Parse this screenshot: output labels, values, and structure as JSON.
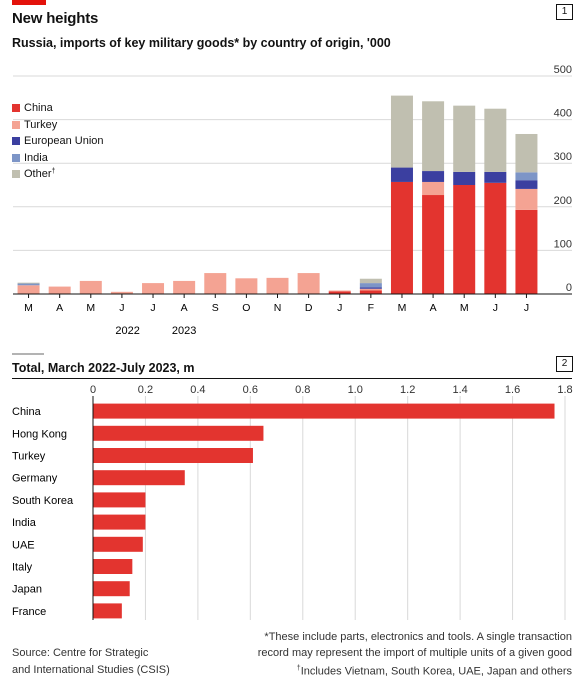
{
  "header": {
    "title": "New heights",
    "subtitle": "Russia, imports of key military goods* by country of origin, '000",
    "panel1_number": "1",
    "panel2_number": "2",
    "panel2_title": "Total, March 2022-July 2023, m"
  },
  "legend": [
    {
      "label": "China",
      "color": "#e3342f"
    },
    {
      "label": "Turkey",
      "color": "#f4a393"
    },
    {
      "label": "European Union",
      "color": "#3b3fa0"
    },
    {
      "label": "India",
      "color": "#7d95c7"
    },
    {
      "label": "Other",
      "sup": "†",
      "color": "#c0bfb0"
    }
  ],
  "footer": {
    "source_line1": "Source: Centre for Strategic",
    "source_line2": "and International Studies (CSIS)",
    "note_line1": "*These include parts, electronics and tools. A single transaction",
    "note_line2": "record may represent the import of multiple units of a given good",
    "note_line3_sup": "†",
    "note_line3": "Includes Vietnam, South Korea, UAE, Japan and others"
  },
  "chart_data": [
    {
      "type": "bar",
      "stacked": true,
      "title": "Russia, imports of key military goods* by country of origin, '000",
      "categories": [
        "M",
        "A",
        "M",
        "J",
        "J",
        "A",
        "S",
        "O",
        "N",
        "D",
        "J",
        "F",
        "M",
        "A",
        "M",
        "J",
        "J"
      ],
      "year_labels": [
        {
          "label": "2022",
          "under": "A"
        },
        {
          "label": "2023",
          "under": "A"
        }
      ],
      "y_ticks": [
        0,
        100,
        200,
        300,
        400,
        500
      ],
      "ylim": [
        0,
        500
      ],
      "series": [
        {
          "name": "China",
          "color": "#e3342f",
          "values": [
            0,
            0,
            0,
            0,
            0,
            0,
            0,
            0,
            0,
            0,
            6,
            8,
            257,
            227,
            250,
            255,
            193
          ]
        },
        {
          "name": "Turkey",
          "color": "#f4a393",
          "values": [
            20,
            17,
            30,
            5,
            25,
            30,
            48,
            36,
            37,
            48,
            2,
            4,
            0,
            30,
            0,
            0,
            48
          ]
        },
        {
          "name": "European Union",
          "color": "#3b3fa0",
          "values": [
            0,
            0,
            0,
            0,
            0,
            0,
            0,
            0,
            0,
            0,
            0,
            3,
            33,
            25,
            30,
            25,
            20
          ]
        },
        {
          "name": "India",
          "color": "#7d95c7",
          "values": [
            4,
            0,
            0,
            0,
            0,
            0,
            0,
            0,
            0,
            0,
            0,
            10,
            0,
            0,
            0,
            0,
            18
          ]
        },
        {
          "name": "Other",
          "color": "#c0bfb0",
          "values": [
            2,
            0,
            0,
            0,
            0,
            0,
            0,
            0,
            0,
            0,
            0,
            10,
            165,
            160,
            152,
            145,
            88
          ]
        }
      ]
    },
    {
      "type": "bar",
      "orientation": "horizontal",
      "title": "Total, March 2022-July 2023, m",
      "categories": [
        "China",
        "Hong Kong",
        "Turkey",
        "Germany",
        "South Korea",
        "India",
        "UAE",
        "Italy",
        "Japan",
        "France"
      ],
      "values": [
        1.76,
        0.65,
        0.61,
        0.35,
        0.2,
        0.2,
        0.19,
        0.15,
        0.14,
        0.11
      ],
      "x_ticks": [
        "0",
        "0.2",
        "0.4",
        "0.6",
        "0.8",
        "1.0",
        "1.2",
        "1.4",
        "1.6",
        "1.8"
      ],
      "xlim": [
        0,
        1.8
      ],
      "color": "#e3342f"
    }
  ]
}
